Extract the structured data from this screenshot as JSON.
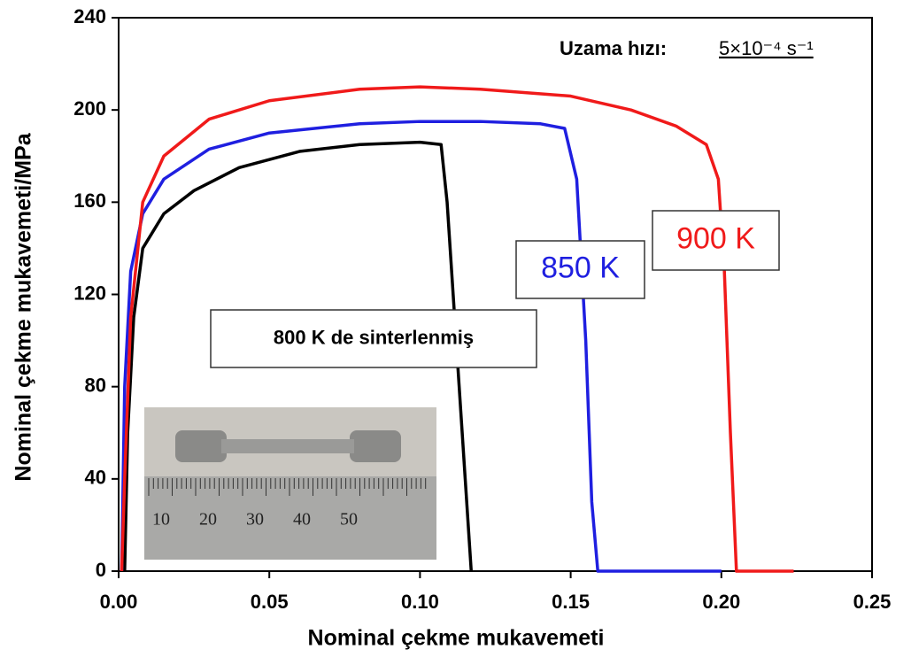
{
  "chart_data": {
    "type": "line",
    "x_label": "Nominal çekme mukavemeti",
    "y_label": "Nominal çekme mukavemeti/MPa",
    "annotation": {
      "label": "Uzama hızı:",
      "rate": "5×10⁻⁴ s⁻¹"
    },
    "inset_ruler_labels": [
      "10",
      "20",
      "30",
      "40",
      "50"
    ],
    "xlim": [
      0,
      0.25
    ],
    "ylim": [
      0,
      240
    ],
    "xticks": [
      {
        "value": 0,
        "label": "0.00"
      },
      {
        "value": 0.05,
        "label": "0.05"
      },
      {
        "value": 0.1,
        "label": "0.10"
      },
      {
        "value": 0.15,
        "label": "0.15"
      },
      {
        "value": 0.2,
        "label": "0.20"
      },
      {
        "value": 0.25,
        "label": "0.25"
      }
    ],
    "yticks": [
      0,
      40,
      80,
      120,
      160,
      200,
      240
    ],
    "series": [
      {
        "name": "800 K de sinterlenmiş",
        "color": "#000000",
        "x": [
          0.002,
          0.003,
          0.005,
          0.008,
          0.015,
          0.025,
          0.04,
          0.06,
          0.08,
          0.1,
          0.107,
          0.109,
          0.112,
          0.115,
          0.117
        ],
        "values": [
          0,
          60,
          110,
          140,
          155,
          165,
          175,
          182,
          185,
          186,
          185,
          160,
          100,
          40,
          0
        ]
      },
      {
        "name": "850 K",
        "color": "#1f1fe0",
        "x": [
          0.001,
          0.002,
          0.004,
          0.008,
          0.015,
          0.03,
          0.05,
          0.08,
          0.1,
          0.12,
          0.14,
          0.148,
          0.152,
          0.155,
          0.157,
          0.159,
          0.2
        ],
        "values": [
          0,
          80,
          130,
          155,
          170,
          183,
          190,
          194,
          195,
          195,
          194,
          192,
          170,
          100,
          30,
          0,
          0
        ]
      },
      {
        "name": "900 K",
        "color": "#f01a1a",
        "x": [
          0.001,
          0.002,
          0.004,
          0.008,
          0.015,
          0.03,
          0.05,
          0.08,
          0.1,
          0.12,
          0.15,
          0.17,
          0.185,
          0.195,
          0.199,
          0.201,
          0.203,
          0.205,
          0.224
        ],
        "values": [
          0,
          40,
          110,
          160,
          180,
          196,
          204,
          209,
          210,
          209,
          206,
          200,
          193,
          185,
          170,
          130,
          60,
          0,
          0
        ]
      }
    ]
  }
}
